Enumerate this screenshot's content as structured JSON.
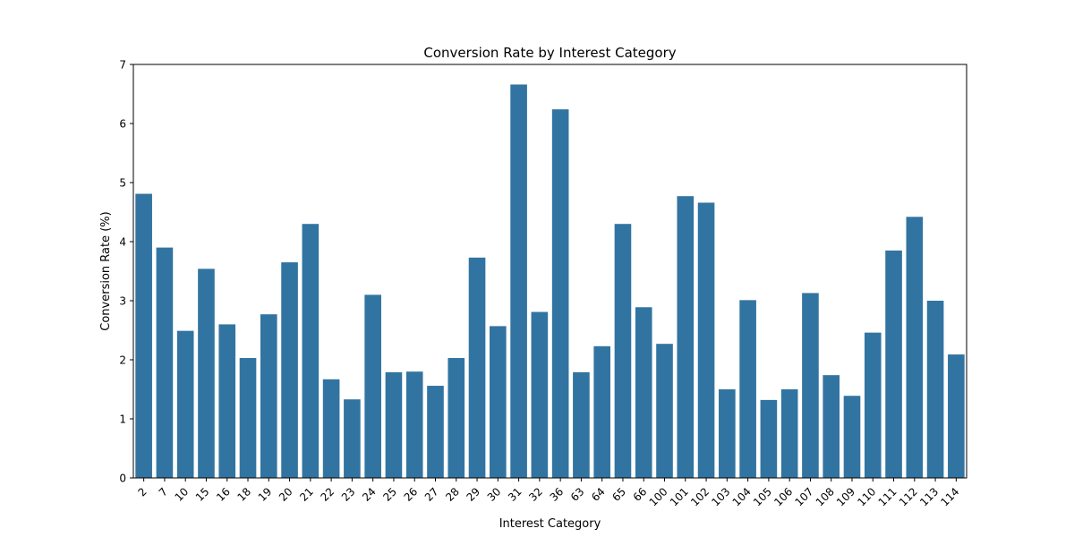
{
  "chart_data": {
    "type": "bar",
    "title": "Conversion Rate by Interest Category",
    "xlabel": "Interest Category",
    "ylabel": "Conversion Rate (%)",
    "ylim": [
      0,
      7
    ],
    "yticks": [
      0,
      1,
      2,
      3,
      4,
      5,
      6,
      7
    ],
    "grid": false,
    "bar_color": "#3274a1",
    "categories": [
      "2",
      "7",
      "10",
      "15",
      "16",
      "18",
      "19",
      "20",
      "21",
      "22",
      "23",
      "24",
      "25",
      "26",
      "27",
      "28",
      "29",
      "30",
      "31",
      "32",
      "36",
      "63",
      "64",
      "65",
      "66",
      "100",
      "101",
      "102",
      "103",
      "104",
      "105",
      "106",
      "107",
      "108",
      "109",
      "110",
      "111",
      "112",
      "113",
      "114"
    ],
    "values": [
      4.81,
      3.9,
      2.49,
      3.54,
      2.6,
      2.03,
      2.77,
      3.65,
      4.3,
      1.67,
      1.33,
      3.1,
      1.79,
      1.8,
      1.56,
      2.03,
      3.73,
      2.57,
      6.66,
      2.81,
      6.24,
      1.79,
      2.23,
      4.3,
      2.89,
      2.27,
      4.77,
      4.66,
      1.5,
      3.01,
      1.32,
      1.5,
      3.13,
      1.74,
      1.39,
      2.46,
      3.85,
      4.42,
      3.0,
      2.09
    ]
  }
}
